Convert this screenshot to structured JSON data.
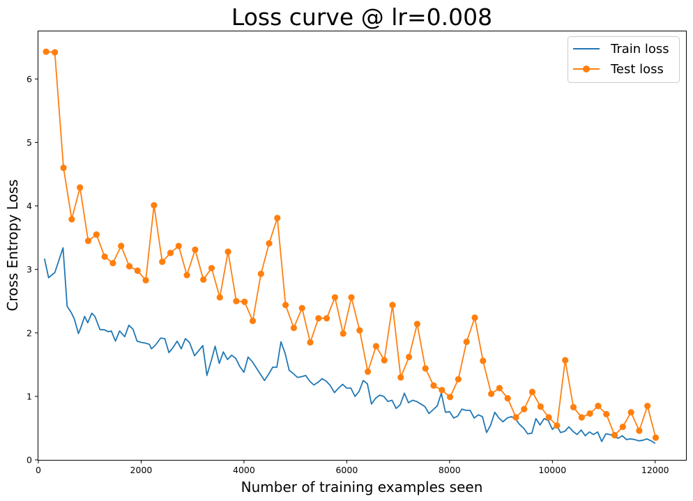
{
  "chart_data": {
    "type": "line",
    "title": "Loss curve @ lr=0.008",
    "xlabel": "Number of training examples seen",
    "ylabel": "Cross Entropy Loss",
    "xlim": [
      0,
      12600
    ],
    "ylim": [
      0,
      6.75
    ],
    "xticks": [
      0,
      2000,
      4000,
      6000,
      8000,
      10000,
      12000
    ],
    "yticks": [
      0,
      1,
      2,
      3,
      4,
      5,
      6
    ],
    "grid": false,
    "legend_position": "top-right",
    "series": [
      {
        "name": "Train loss",
        "color": "#1f77b4",
        "marker": "none",
        "x": [
          120,
          200,
          320,
          480,
          560,
          640,
          700,
          780,
          820,
          900,
          960,
          1040,
          1100,
          1200,
          1280,
          1360,
          1420,
          1500,
          1580,
          1680,
          1760,
          1840,
          1920,
          2000,
          2080,
          2160,
          2200,
          2280,
          2380,
          2460,
          2540,
          2620,
          2700,
          2780,
          2860,
          2940,
          3040,
          3120,
          3200,
          3280,
          3360,
          3440,
          3520,
          3600,
          3680,
          3760,
          3840,
          3920,
          4000,
          4080,
          4160,
          4240,
          4320,
          4400,
          4480,
          4560,
          4640,
          4720,
          4800,
          4880,
          4960,
          5040,
          5120,
          5200,
          5280,
          5360,
          5440,
          5520,
          5600,
          5680,
          5760,
          5840,
          5920,
          6000,
          6080,
          6160,
          6240,
          6320,
          6400,
          6480,
          6560,
          6640,
          6720,
          6800,
          6880,
          6960,
          7040,
          7120,
          7200,
          7280,
          7360,
          7440,
          7520,
          7600,
          7680,
          7760,
          7840,
          7920,
          8000,
          8080,
          8160,
          8240,
          8320,
          8400,
          8480,
          8560,
          8640,
          8720,
          8800,
          8880,
          8960,
          9040,
          9120,
          9200,
          9280,
          9360,
          9440,
          9520,
          9600,
          9680,
          9760,
          9840,
          9920,
          10000,
          10080,
          10160,
          10240,
          10320,
          10400,
          10480,
          10560,
          10640,
          10720,
          10800,
          10880,
          10960,
          11040,
          11120,
          11200,
          11280,
          11360,
          11440,
          11520,
          11600,
          11680,
          11760,
          11840,
          11920,
          12000
        ],
        "y": [
          3.17,
          2.87,
          2.95,
          3.34,
          2.42,
          2.32,
          2.22,
          1.99,
          2.07,
          2.26,
          2.16,
          2.31,
          2.26,
          2.05,
          2.05,
          2.02,
          2.03,
          1.87,
          2.03,
          1.94,
          2.12,
          2.06,
          1.87,
          1.85,
          1.84,
          1.82,
          1.75,
          1.81,
          1.92,
          1.91,
          1.69,
          1.77,
          1.87,
          1.75,
          1.91,
          1.85,
          1.64,
          1.72,
          1.8,
          1.33,
          1.55,
          1.79,
          1.52,
          1.7,
          1.58,
          1.65,
          1.6,
          1.47,
          1.38,
          1.62,
          1.55,
          1.45,
          1.35,
          1.25,
          1.35,
          1.46,
          1.46,
          1.86,
          1.68,
          1.41,
          1.36,
          1.3,
          1.31,
          1.33,
          1.24,
          1.18,
          1.22,
          1.28,
          1.24,
          1.17,
          1.06,
          1.13,
          1.19,
          1.13,
          1.13,
          1.0,
          1.08,
          1.25,
          1.2,
          0.88,
          0.97,
          1.02,
          1.0,
          0.92,
          0.94,
          0.81,
          0.87,
          1.05,
          0.9,
          0.94,
          0.92,
          0.88,
          0.84,
          0.73,
          0.79,
          0.85,
          1.05,
          0.75,
          0.76,
          0.66,
          0.69,
          0.8,
          0.78,
          0.78,
          0.66,
          0.71,
          0.68,
          0.43,
          0.55,
          0.75,
          0.66,
          0.6,
          0.66,
          0.68,
          0.65,
          0.56,
          0.5,
          0.41,
          0.42,
          0.65,
          0.55,
          0.65,
          0.62,
          0.48,
          0.55,
          0.43,
          0.45,
          0.52,
          0.45,
          0.4,
          0.47,
          0.38,
          0.44,
          0.4,
          0.44,
          0.29,
          0.41,
          0.4,
          0.37,
          0.34,
          0.38,
          0.32,
          0.33,
          0.32,
          0.3,
          0.31,
          0.33,
          0.3,
          0.26
        ]
      },
      {
        "name": "Test loss",
        "color": "#ff7f0e",
        "marker": "circle",
        "x": [
          150,
          320,
          490,
          650,
          810,
          970,
          1130,
          1290,
          1450,
          1610,
          1770,
          1930,
          2090,
          2250,
          2410,
          2570,
          2730,
          2890,
          3050,
          3210,
          3370,
          3530,
          3690,
          3850,
          4010,
          4170,
          4330,
          4490,
          4650,
          4810,
          4970,
          5130,
          5290,
          5450,
          5610,
          5770,
          5930,
          6090,
          6250,
          6410,
          6570,
          6730,
          6890,
          7050,
          7210,
          7370,
          7530,
          7690,
          7850,
          8010,
          8170,
          8330,
          8490,
          8650,
          8810,
          8970,
          9130,
          9290,
          9450,
          9610,
          9770,
          9930,
          10090,
          10250,
          10410,
          10570,
          10730,
          10890,
          11050,
          11210,
          11370,
          11530,
          11690,
          11850,
          12010
        ],
        "y": [
          6.43,
          6.42,
          4.6,
          3.79,
          4.29,
          3.45,
          3.55,
          3.2,
          3.1,
          3.37,
          3.05,
          2.98,
          2.83,
          4.01,
          3.12,
          3.26,
          3.37,
          2.91,
          3.31,
          2.84,
          3.02,
          2.56,
          3.28,
          2.5,
          2.49,
          2.19,
          2.93,
          3.41,
          3.81,
          2.44,
          2.08,
          2.39,
          1.85,
          2.23,
          2.23,
          2.56,
          1.99,
          2.56,
          2.04,
          1.39,
          1.79,
          1.57,
          2.44,
          1.3,
          1.62,
          2.14,
          1.44,
          1.17,
          1.1,
          0.99,
          1.27,
          1.86,
          2.24,
          1.56,
          1.04,
          1.13,
          0.97,
          0.67,
          0.8,
          1.07,
          0.84,
          0.67,
          0.54,
          1.57,
          0.83,
          0.67,
          0.73,
          0.85,
          0.72,
          0.39,
          0.52,
          0.75,
          0.46,
          0.85,
          0.35
        ]
      }
    ]
  }
}
